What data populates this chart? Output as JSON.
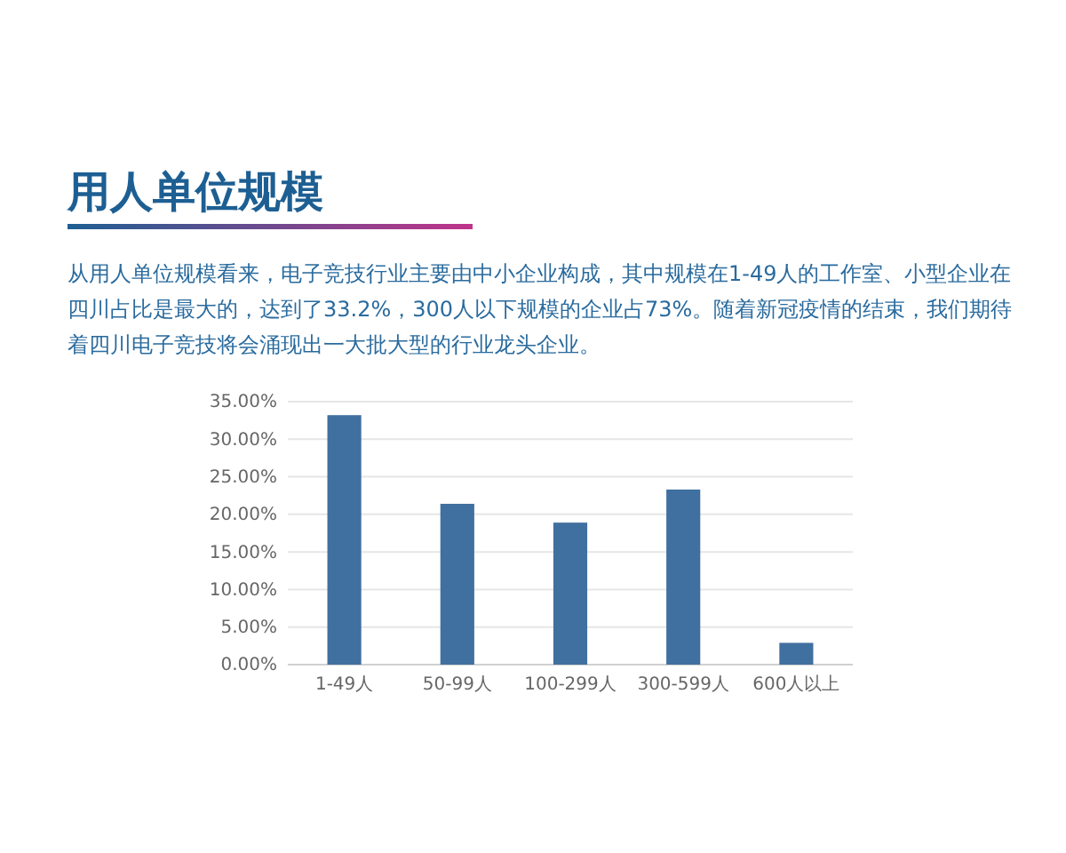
{
  "chart_data": {
    "type": "bar",
    "title": "用人单位规模",
    "subtitle": "从用人单位规模看来，电子竞技行业主要由中小企业构成，其中规模在1-49人的工作室、小型企业在四川占比是最大的，达到了33.2%，300人以下规模的企业占73%。随着新冠疫情的结束，我们期待着四川电子竞技将会涌现出一大批大型的行业龙头企业。",
    "categories": [
      "1-49人",
      "50-99人",
      "100-299人",
      "300-599人",
      "600人以上"
    ],
    "values": [
      33.2,
      21.4,
      18.9,
      23.3,
      2.9
    ],
    "color": "#40709f",
    "ylim": [
      0,
      35
    ],
    "yticks": [
      {
        "value": 0,
        "label": "0.00%"
      },
      {
        "value": 5,
        "label": "5.00%"
      },
      {
        "value": 10,
        "label": "10.00%"
      },
      {
        "value": 15,
        "label": "15.00%"
      },
      {
        "value": 20,
        "label": "20.00%"
      },
      {
        "value": 25,
        "label": "25.00%"
      },
      {
        "value": 30,
        "label": "30.00%"
      },
      {
        "value": 35,
        "label": "35.00%"
      }
    ],
    "grid": "y"
  }
}
